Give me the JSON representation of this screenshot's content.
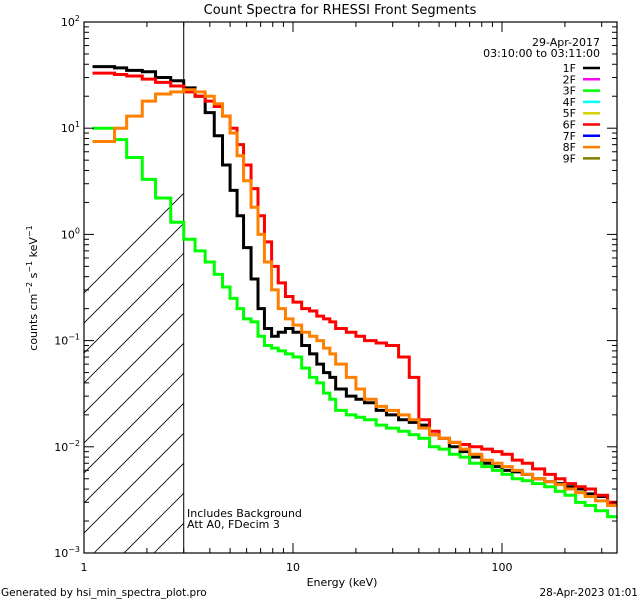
{
  "chart_data": {
    "type": "line",
    "title": "Count Spectra for RHESSI Front Segments",
    "xlabel": "Energy (keV)",
    "ylabel": "counts cm^-2 s^-1 keV^-1",
    "ylabel_parts": {
      "base": "counts cm",
      "exp1": "−2",
      "mid": " s",
      "exp2": "−1",
      "tail": " keV",
      "exp3": "−1"
    },
    "xscale": "log",
    "yscale": "log",
    "xlim": [
      1,
      355
    ],
    "ylim": [
      0.001,
      100
    ],
    "x_tick_labels": [
      {
        "value": 1,
        "label": "1"
      },
      {
        "value": 10,
        "label": "10"
      },
      {
        "value": 100,
        "label": "100"
      }
    ],
    "y_tick_labels": [
      {
        "value": 100,
        "base": "10",
        "exp": "2"
      },
      {
        "value": 10,
        "base": "10",
        "exp": "1"
      },
      {
        "value": 1,
        "base": "10",
        "exp": "0"
      },
      {
        "value": 0.1,
        "base": "10",
        "exp": "−1"
      },
      {
        "value": 0.01,
        "base": "10",
        "exp": "−2"
      },
      {
        "value": 0.001,
        "base": "10",
        "exp": "−3"
      }
    ],
    "grid": false,
    "date": "29-Apr-2017",
    "time_range": "03:10:00 to 03:11:00",
    "legend_placement": "top-right",
    "legend": [
      {
        "name": "1F",
        "color": "#000000"
      },
      {
        "name": "2F",
        "color": "#ff00ff"
      },
      {
        "name": "3F",
        "color": "#00ff00"
      },
      {
        "name": "4F",
        "color": "#00ffff"
      },
      {
        "name": "5F",
        "color": "#d4d400"
      },
      {
        "name": "6F",
        "color": "#ff0000"
      },
      {
        "name": "7F",
        "color": "#0000ff"
      },
      {
        "name": "8F",
        "color": "#ff8000"
      },
      {
        "name": "9F",
        "color": "#808000"
      }
    ],
    "shaded_region": {
      "description": "hatched excluded low-energy region",
      "x_range": [
        1,
        3
      ]
    },
    "annotations": [
      "Includes Background",
      "Att A0, FDecim 3"
    ],
    "series": [
      {
        "name": "1F",
        "color": "#000000",
        "x": [
          1.2,
          1.4,
          1.6,
          1.9,
          2.2,
          2.6,
          3.0,
          3.4,
          3.8,
          4.2,
          4.6,
          5.0,
          5.4,
          5.8,
          6.3,
          6.8,
          7.3,
          7.9,
          8.5,
          9.2,
          10,
          11,
          12,
          13,
          14,
          15,
          16,
          18,
          20,
          22,
          25,
          28,
          32,
          36,
          40,
          45,
          50,
          56,
          63,
          70,
          80,
          90,
          100,
          112,
          125,
          140,
          160,
          180,
          200,
          225,
          250,
          280,
          320
        ],
        "y": [
          38,
          37,
          35,
          34,
          30,
          28,
          24,
          20,
          14,
          8.5,
          4.5,
          2.6,
          1.5,
          0.75,
          0.38,
          0.2,
          0.13,
          0.11,
          0.12,
          0.13,
          0.12,
          0.09,
          0.075,
          0.06,
          0.05,
          0.045,
          0.035,
          0.03,
          0.028,
          0.026,
          0.022,
          0.02,
          0.018,
          0.017,
          0.016,
          0.013,
          0.012,
          0.01,
          0.009,
          0.008,
          0.007,
          0.0065,
          0.006,
          0.0058,
          0.0055,
          0.005,
          0.0047,
          0.0045,
          0.0042,
          0.004,
          0.0036,
          0.0034,
          0.003
        ]
      },
      {
        "name": "3F",
        "color": "#00ff00",
        "x": [
          1.2,
          1.4,
          1.6,
          1.9,
          2.2,
          2.6,
          3.0,
          3.4,
          3.8,
          4.2,
          4.6,
          5.0,
          5.4,
          5.8,
          6.3,
          6.8,
          7.3,
          7.9,
          8.5,
          9.2,
          10,
          11,
          12,
          13,
          14,
          15,
          16,
          18,
          20,
          22,
          25,
          28,
          32,
          36,
          40,
          45,
          50,
          56,
          63,
          70,
          80,
          90,
          100,
          112,
          125,
          140,
          160,
          180,
          200,
          225,
          250,
          280,
          320
        ],
        "y": [
          10,
          7.8,
          5.3,
          3.3,
          2.2,
          1.3,
          0.9,
          0.7,
          0.55,
          0.42,
          0.32,
          0.25,
          0.2,
          0.16,
          0.15,
          0.11,
          0.09,
          0.085,
          0.08,
          0.075,
          0.07,
          0.055,
          0.045,
          0.04,
          0.032,
          0.028,
          0.022,
          0.02,
          0.019,
          0.018,
          0.016,
          0.015,
          0.014,
          0.013,
          0.012,
          0.01,
          0.0095,
          0.0085,
          0.008,
          0.007,
          0.0065,
          0.006,
          0.0055,
          0.005,
          0.0048,
          0.0045,
          0.0042,
          0.0038,
          0.0035,
          0.003,
          0.0028,
          0.0025,
          0.0022
        ]
      },
      {
        "name": "6F",
        "color": "#ff0000",
        "x": [
          1.2,
          1.4,
          1.6,
          1.9,
          2.2,
          2.6,
          3.0,
          3.4,
          3.8,
          4.2,
          4.6,
          5.0,
          5.4,
          5.8,
          6.3,
          6.8,
          7.3,
          7.9,
          8.5,
          9.2,
          10,
          11,
          12,
          13,
          14,
          15,
          16,
          18,
          20,
          22,
          25,
          28,
          32,
          36,
          40,
          45,
          50,
          56,
          63,
          70,
          80,
          90,
          100,
          112,
          125,
          140,
          160,
          180,
          200,
          225,
          250,
          280,
          320
        ],
        "y": [
          33,
          32,
          31,
          29,
          27,
          25,
          22,
          20,
          18,
          16,
          13,
          10,
          7,
          4.5,
          2.7,
          1.5,
          0.85,
          0.5,
          0.35,
          0.26,
          0.23,
          0.2,
          0.19,
          0.17,
          0.16,
          0.15,
          0.13,
          0.12,
          0.11,
          0.1,
          0.095,
          0.09,
          0.07,
          0.045,
          0.018,
          0.014,
          0.012,
          0.011,
          0.0105,
          0.01,
          0.0095,
          0.009,
          0.0085,
          0.0075,
          0.007,
          0.0062,
          0.0055,
          0.005,
          0.0045,
          0.0042,
          0.004,
          0.0035,
          0.003
        ]
      },
      {
        "name": "8F",
        "color": "#ff8000",
        "x": [
          1.2,
          1.4,
          1.6,
          1.9,
          2.2,
          2.6,
          3.0,
          3.4,
          3.8,
          4.2,
          4.6,
          5.0,
          5.4,
          5.8,
          6.3,
          6.8,
          7.3,
          7.9,
          8.5,
          9.2,
          10,
          11,
          12,
          13,
          14,
          15,
          16,
          18,
          20,
          22,
          25,
          28,
          32,
          36,
          40,
          45,
          50,
          56,
          63,
          70,
          80,
          90,
          100,
          112,
          125,
          140,
          160,
          180,
          200,
          225,
          250,
          280,
          320
        ],
        "y": [
          7.5,
          10,
          13,
          18,
          21,
          22,
          23,
          22,
          20,
          17,
          13,
          9,
          5.5,
          3.2,
          1.8,
          1.0,
          0.55,
          0.3,
          0.2,
          0.16,
          0.14,
          0.12,
          0.11,
          0.1,
          0.085,
          0.075,
          0.06,
          0.045,
          0.035,
          0.028,
          0.024,
          0.022,
          0.02,
          0.018,
          0.015,
          0.013,
          0.012,
          0.011,
          0.0095,
          0.0085,
          0.0075,
          0.007,
          0.0065,
          0.006,
          0.0055,
          0.005,
          0.0047,
          0.0044,
          0.004,
          0.0037,
          0.0034,
          0.0031,
          0.0028
        ]
      }
    ]
  },
  "footer": {
    "generated_by": "Generated by hsi_min_spectra_plot.pro",
    "timestamp": "28-Apr-2023 01:01"
  }
}
